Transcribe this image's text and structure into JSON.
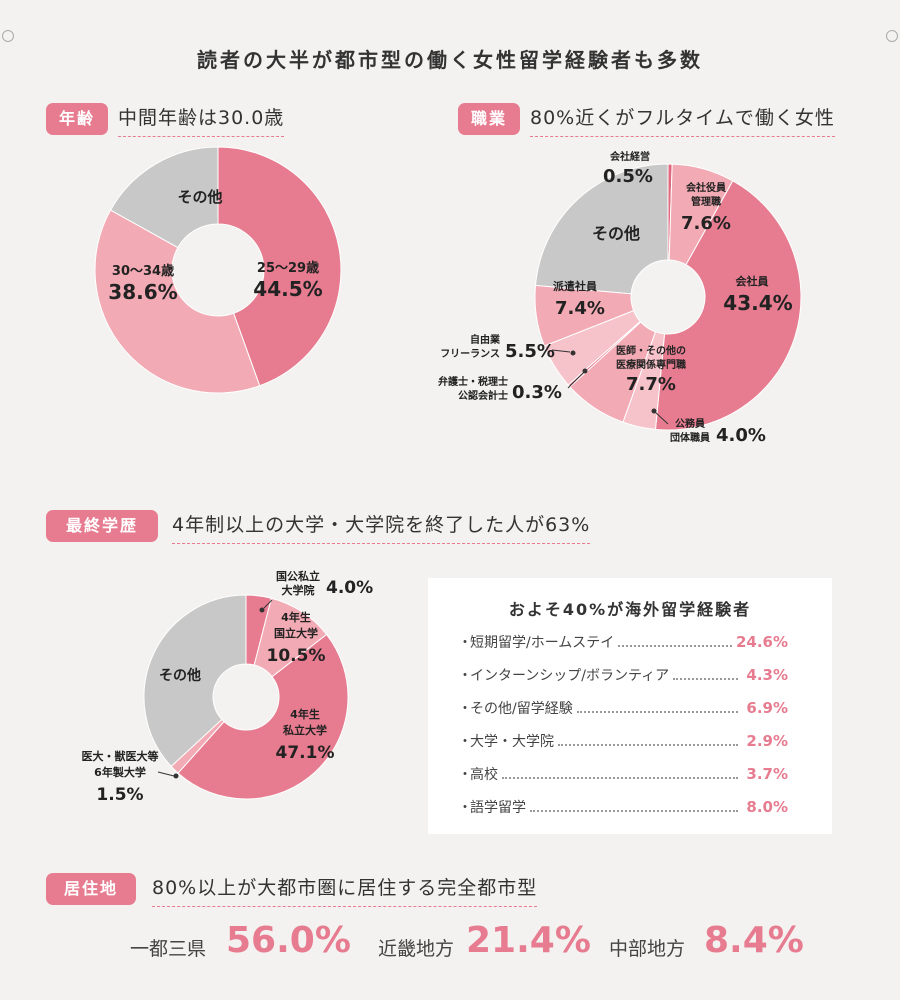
{
  "title": "読者の大半が都市型の働く女性留学経験者も多数",
  "age": {
    "badge": "年齢",
    "heading": "中間年齢は30.0歳"
  },
  "job": {
    "badge": "職業",
    "heading": "80%近くがフルタイムで働く女性"
  },
  "edu": {
    "badge": "最終学歴",
    "heading": "4年制以上の大学・大学院を終了した人が63%"
  },
  "study_abroad": {
    "title": "およそ40%が海外留学経験者",
    "items": [
      {
        "name": "短期留学/ホームステイ",
        "value": "24.6%"
      },
      {
        "name": "インターンシップ/ボランティア",
        "value": "4.3%"
      },
      {
        "name": "その他/留学経験",
        "value": "6.9%"
      },
      {
        "name": "大学・大学院",
        "value": "2.9%"
      },
      {
        "name": "高校",
        "value": "3.7%"
      },
      {
        "name": "語学留学",
        "value": "8.0%"
      }
    ]
  },
  "residence": {
    "badge": "居住地",
    "heading": "80%以上が大都市圏に居住する完全都市型",
    "items": [
      {
        "label": "一都三県",
        "value": "56.0%"
      },
      {
        "label": "近畿地方",
        "value": "21.4%"
      },
      {
        "label": "中部地方",
        "value": "8.4%"
      }
    ]
  },
  "chart_data": [
    {
      "type": "pie",
      "name": "年齢",
      "colors": {
        "pink": "#e77c90",
        "light_pink": "#f2aab4",
        "pale_pink": "#f6c3ca",
        "gray": "#c8c8c8"
      },
      "slices": [
        {
          "label_lines": [
            "25～29歳"
          ],
          "value": 44.5,
          "text": "44.5%",
          "color": "#e77c90"
        },
        {
          "label_lines": [
            "30～34歳"
          ],
          "value": 38.6,
          "text": "38.6%",
          "color": "#f2aab4"
        },
        {
          "label_lines": [
            "その他"
          ],
          "value": 16.9,
          "text": "",
          "color": "#c8c8c8"
        }
      ]
    },
    {
      "type": "pie",
      "name": "職業",
      "slices": [
        {
          "label_lines": [
            "会社経営"
          ],
          "value": 0.5,
          "text": "0.5%",
          "color": "#e0697f"
        },
        {
          "label_lines": [
            "会社役員",
            "管理職"
          ],
          "value": 7.6,
          "text": "7.6%",
          "color": "#f2aab4"
        },
        {
          "label_lines": [
            "会社員"
          ],
          "value": 43.4,
          "text": "43.4%",
          "color": "#e77c90"
        },
        {
          "label_lines": [
            "公務員",
            "団体職員"
          ],
          "value": 4.0,
          "text": "4.0%",
          "color": "#f6c3ca"
        },
        {
          "label_lines": [
            "医師・その他の",
            "医療関係専門職"
          ],
          "value": 7.7,
          "text": "7.7%",
          "color": "#f2aab4"
        },
        {
          "label_lines": [
            "弁護士・税理士",
            "公認会計士"
          ],
          "value": 0.3,
          "text": "0.3%",
          "color": "#e0697f"
        },
        {
          "label_lines": [
            "自由業",
            "フリーランス"
          ],
          "value": 5.5,
          "text": "5.5%",
          "color": "#f6c3ca"
        },
        {
          "label_lines": [
            "派遣社員"
          ],
          "value": 7.4,
          "text": "7.4%",
          "color": "#f2aab4"
        },
        {
          "label_lines": [
            "その他"
          ],
          "value": 23.6,
          "text": "",
          "color": "#c8c8c8"
        }
      ]
    },
    {
      "type": "pie",
      "name": "最終学歴",
      "slices": [
        {
          "label_lines": [
            "国公私立",
            "大学院"
          ],
          "value": 4.0,
          "text": "4.0%",
          "color": "#e77c90"
        },
        {
          "label_lines": [
            "4年生",
            "国立大学"
          ],
          "value": 10.5,
          "text": "10.5%",
          "color": "#f2aab4"
        },
        {
          "label_lines": [
            "4年生",
            "私立大学"
          ],
          "value": 47.1,
          "text": "47.1%",
          "color": "#e77c90"
        },
        {
          "label_lines": [
            "医大・獣医大等",
            "6年製大学"
          ],
          "value": 1.5,
          "text": "1.5%",
          "color": "#f2aab4"
        },
        {
          "label_lines": [
            "その他"
          ],
          "value": 36.9,
          "text": "",
          "color": "#c8c8c8"
        }
      ]
    }
  ]
}
